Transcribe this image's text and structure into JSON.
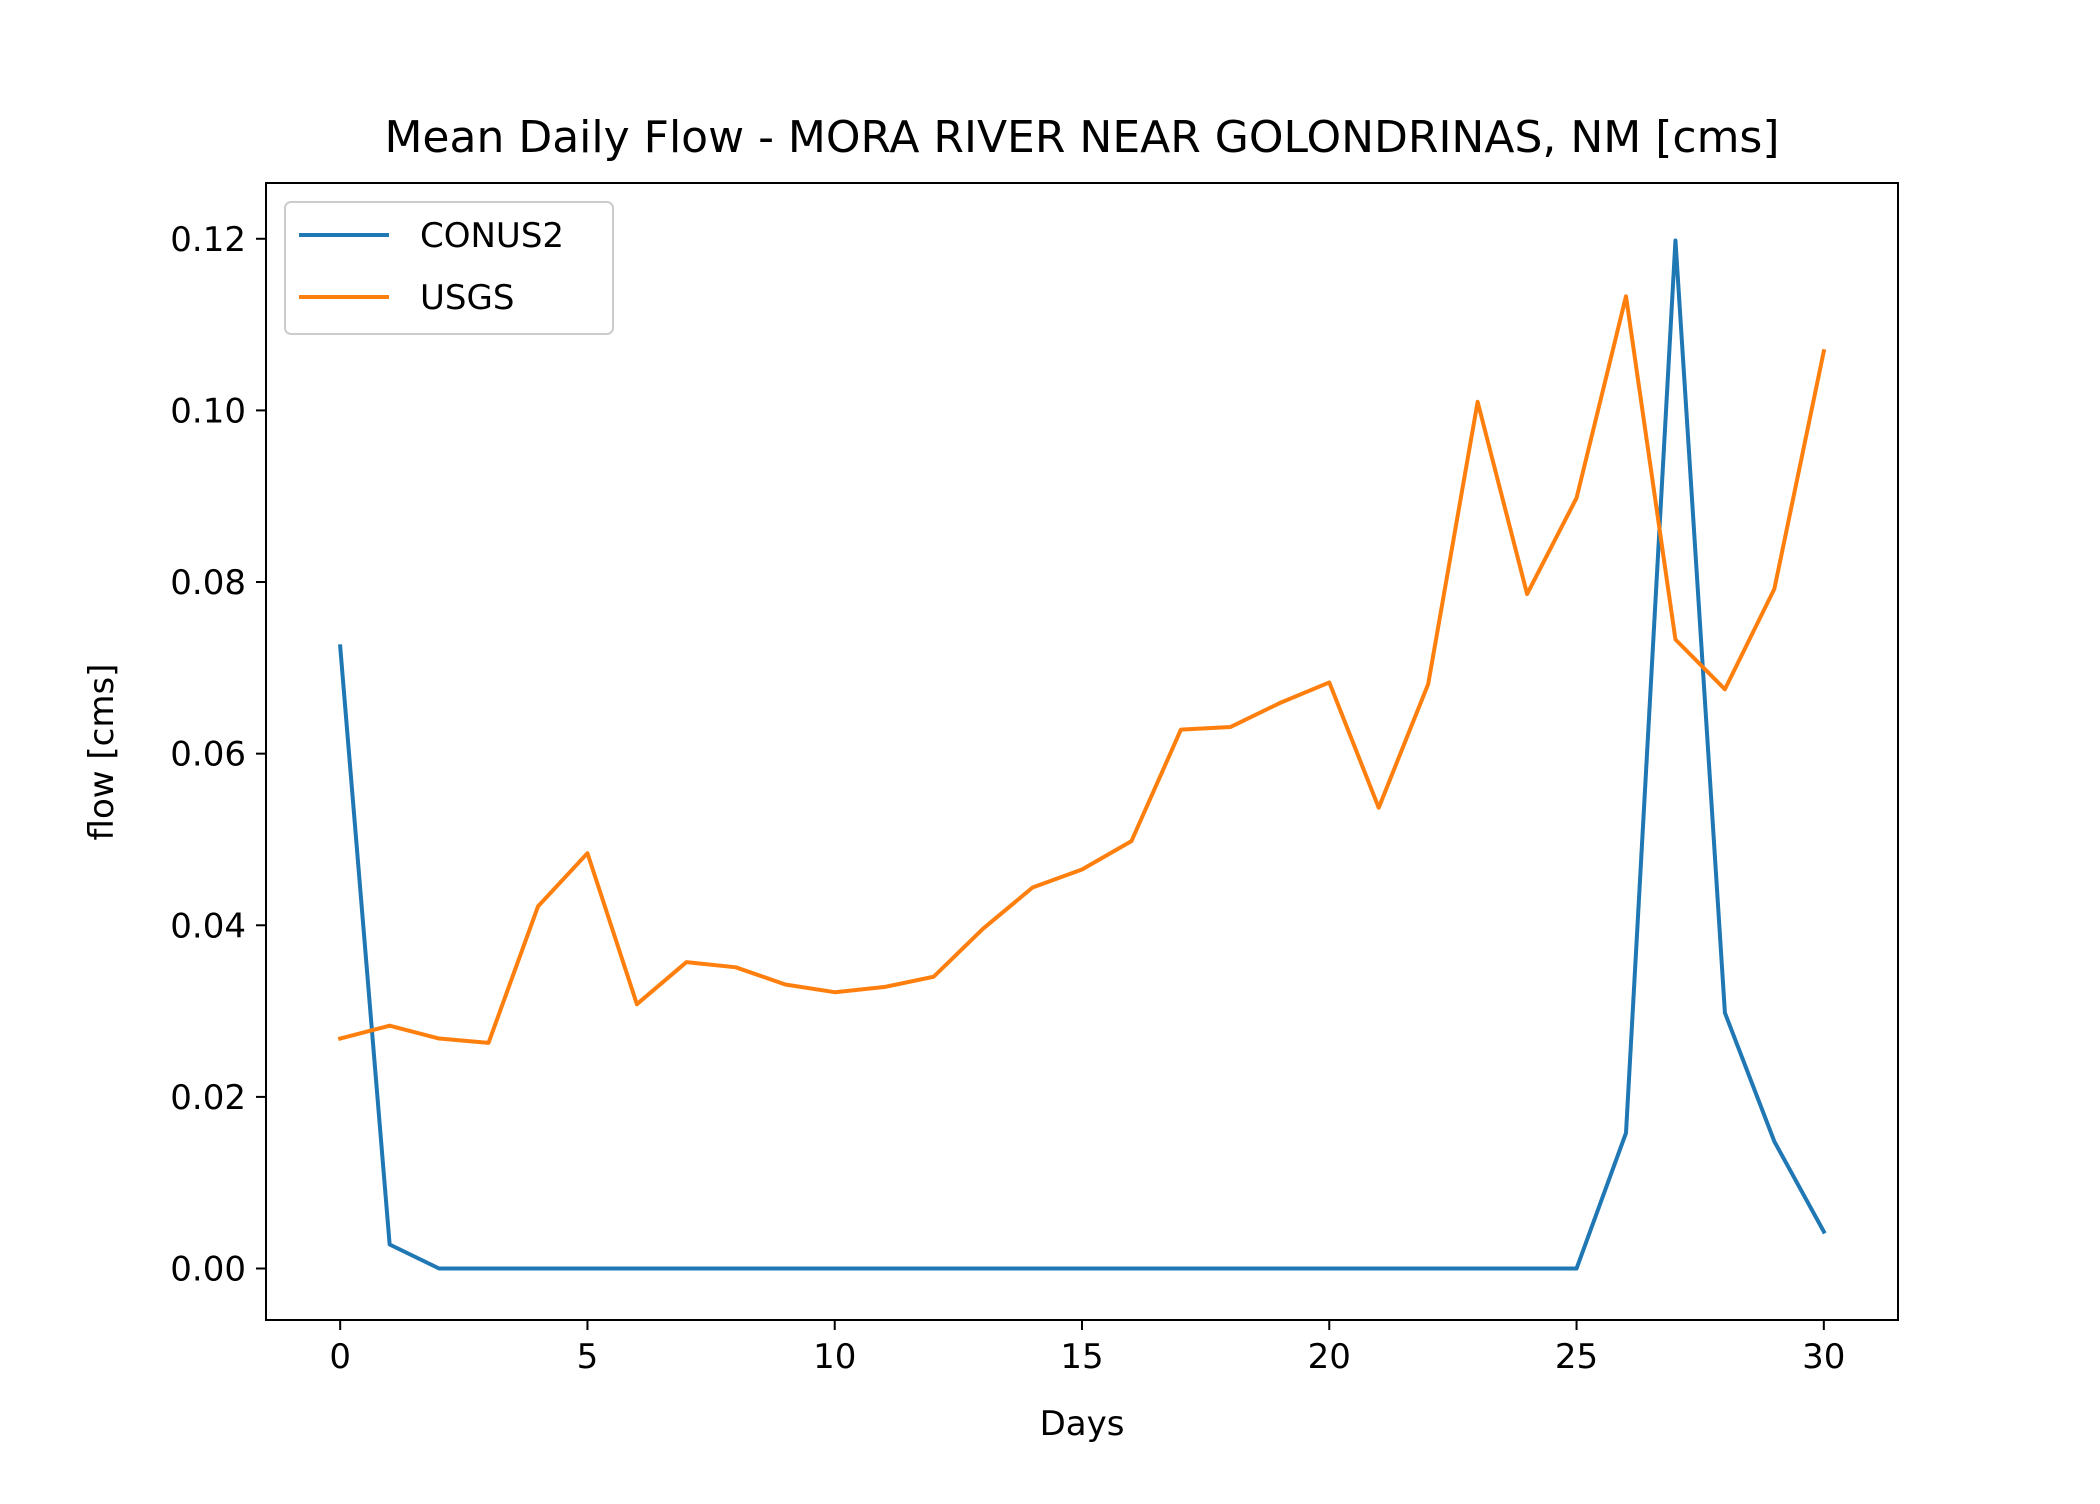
{
  "chart_data": {
    "type": "line",
    "title": "Mean Daily Flow - MORA RIVER NEAR GOLONDRINAS, NM [cms]",
    "xlabel": "Days",
    "ylabel": "flow [cms]",
    "xlim": [
      -1.5,
      31.5
    ],
    "ylim": [
      -0.006,
      0.1265
    ],
    "xticks": [
      0,
      5,
      10,
      15,
      20,
      25,
      30
    ],
    "xtick_labels": [
      "0",
      "5",
      "10",
      "15",
      "20",
      "25",
      "30"
    ],
    "yticks": [
      0.0,
      0.02,
      0.04,
      0.06,
      0.08,
      0.1,
      0.12
    ],
    "ytick_labels": [
      "0.00",
      "0.02",
      "0.04",
      "0.06",
      "0.08",
      "0.10",
      "0.12"
    ],
    "grid": false,
    "legend_position": "top-left",
    "x": [
      0,
      1,
      2,
      3,
      4,
      5,
      6,
      7,
      8,
      9,
      10,
      11,
      12,
      13,
      14,
      15,
      16,
      17,
      18,
      19,
      20,
      21,
      22,
      23,
      24,
      25,
      26,
      27,
      28,
      29,
      30
    ],
    "series": [
      {
        "name": "CONUS2",
        "color": "#1f77b4",
        "values": [
          0.0725,
          0.0028,
          0.0,
          0.0,
          0.0,
          0.0,
          0.0,
          0.0,
          0.0,
          0.0,
          0.0,
          0.0,
          0.0,
          0.0,
          0.0,
          0.0,
          0.0,
          0.0,
          0.0,
          0.0,
          0.0,
          0.0,
          0.0,
          0.0,
          0.0,
          0.0,
          0.0158,
          0.1198,
          0.0298,
          0.0148,
          0.0043
        ]
      },
      {
        "name": "USGS",
        "color": "#ff7f0e",
        "values": [
          0.0268,
          0.0283,
          0.0268,
          0.0263,
          0.0422,
          0.0484,
          0.0308,
          0.0357,
          0.0351,
          0.0331,
          0.0322,
          0.0328,
          0.034,
          0.0396,
          0.0444,
          0.0465,
          0.0498,
          0.0628,
          0.0631,
          0.0659,
          0.0683,
          0.0537,
          0.0681,
          0.101,
          0.0786,
          0.0898,
          0.1133,
          0.0733,
          0.0675,
          0.0792,
          0.1069
        ]
      }
    ]
  }
}
